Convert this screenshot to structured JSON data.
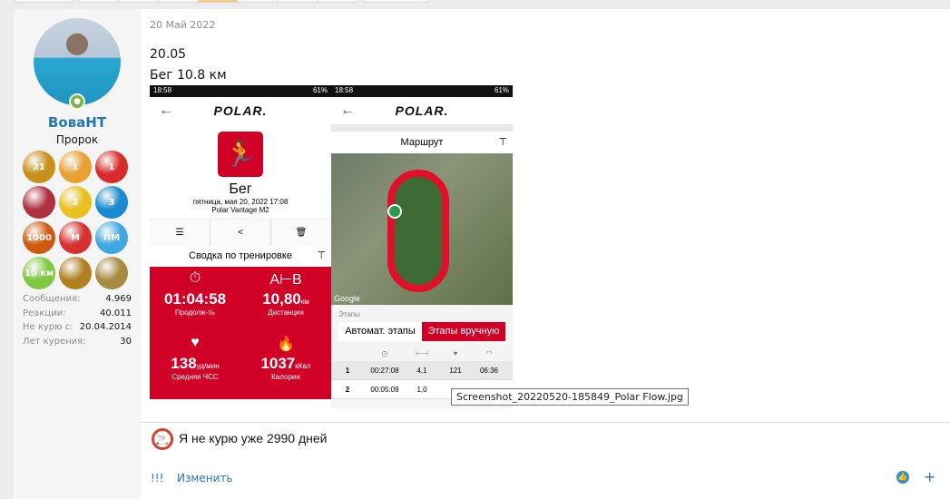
{
  "user": {
    "name": "ВоваНТ",
    "title": "Пророк",
    "badges": [
      {
        "icon": "runner-21-badge",
        "color": "#c8901a",
        "label": "21"
      },
      {
        "icon": "finish-line-badge",
        "color": "#e8a030",
        "label": "1"
      },
      {
        "icon": "ribbon-first-badge",
        "color": "#d82a2a",
        "label": "1"
      },
      {
        "icon": "heart-paris-badge",
        "color": "#b03040",
        "label": ""
      },
      {
        "icon": "checkmark-2-badge",
        "color": "#e8c020",
        "label": "2"
      },
      {
        "icon": "team-3-badge",
        "color": "#1a8ad0",
        "label": "3"
      },
      {
        "icon": "runners-1000-badge",
        "color": "#d05a10",
        "label": "1000"
      },
      {
        "icon": "m-stars-badge",
        "color": "#d83030",
        "label": "M"
      },
      {
        "icon": "pm-lightning-badge",
        "color": "#40a8e0",
        "label": "ПМ"
      },
      {
        "icon": "10km-badge",
        "color": "#80c840",
        "label": "10 км"
      },
      {
        "icon": "apple-badge",
        "color": "#b08020",
        "label": ""
      },
      {
        "icon": "trophy-badge",
        "color": "#a88a40",
        "label": ""
      }
    ],
    "stats": [
      {
        "label": "Сообщения:",
        "value": "4.969"
      },
      {
        "label": "Реакции:",
        "value": "40.011"
      },
      {
        "label": "Не курю с:",
        "value": "20.04.2014"
      },
      {
        "label": "Лет курения:",
        "value": "30"
      }
    ]
  },
  "post": {
    "date": "20 Май 2022",
    "line1": "20.05",
    "line2": "Бег 10.8 км",
    "signature": "Я не курю уже 2990 дней",
    "actions": {
      "report": "!!!",
      "edit": "Изменить",
      "add": "+"
    }
  },
  "attachment": {
    "tooltip": "Screenshot_20220520-185849_Polar Flow.jpg",
    "left": {
      "time": "18:58",
      "battery": "61%",
      "brand": "POLAR.",
      "activity": "Бег",
      "datetime": "пятница, мая 20, 2022 17:08",
      "device": "Polar Vantage M2",
      "summary_title": "Сводка по тренировке",
      "metrics": [
        {
          "value": "01:04:58",
          "unit": "",
          "label": "Продолж-ть"
        },
        {
          "value": "10,80",
          "unit": "км",
          "label": "Дистанция"
        },
        {
          "value": "138",
          "unit": "уд/мин",
          "label": "Средняя ЧСС"
        },
        {
          "value": "1037",
          "unit": "кКал",
          "label": "Калории"
        }
      ]
    },
    "right": {
      "time": "18:58",
      "battery": "61%",
      "brand": "POLAR.",
      "route_title": "Маршрут",
      "map_credit": "Google",
      "laps_label": "Этапы",
      "tab_auto": "Автомат. этапы",
      "tab_manual": "Этапы вручную",
      "laps": [
        [
          "1",
          "00:27:08",
          "4,1",
          "121",
          "06:36"
        ],
        [
          "2",
          "00:05:09",
          "1,0",
          "",
          ""
        ]
      ]
    }
  },
  "colors": {
    "accent": "#2577b1",
    "polar_red": "#d10027"
  }
}
